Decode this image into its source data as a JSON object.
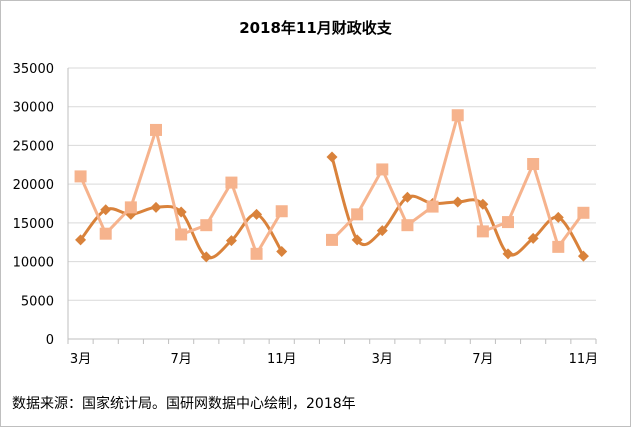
{
  "chart_data": {
    "type": "line",
    "title": "2018年11月财政收支",
    "x_tick_labels": [
      "3月",
      "7月",
      "11月",
      "3月",
      "7月",
      "11月"
    ],
    "x": [
      "2016-03",
      "2016-04",
      "2016-05",
      "2016-06",
      "2016-07",
      "2016-08",
      "2016-09",
      "2016-10",
      "2016-11",
      "2016-12",
      "2017-01",
      "2017-02",
      "2017-03",
      "2017-04",
      "2017-05",
      "2017-06",
      "2017-07",
      "2017-08",
      "2017-09",
      "2017-10",
      "2017-11"
    ],
    "ylim": [
      0,
      35000
    ],
    "yticks": [
      0,
      5000,
      10000,
      15000,
      20000,
      25000,
      30000,
      35000
    ],
    "grid": true,
    "legend": "none",
    "series": [
      {
        "color": "#d9823b",
        "marker": "diamond",
        "smooth": true,
        "values": [
          12800,
          16700,
          16100,
          17000,
          16400,
          10600,
          12700,
          16100,
          11300,
          null,
          23500,
          12800,
          14000,
          18300,
          17500,
          17700,
          17400,
          11000,
          13000,
          15700,
          10700
        ]
      },
      {
        "color": "#f6b38d",
        "marker": "square",
        "smooth": false,
        "values": [
          21000,
          13600,
          17000,
          27000,
          13500,
          14700,
          20200,
          11000,
          16500,
          null,
          12800,
          16100,
          21900,
          14700,
          17100,
          28900,
          13900,
          15100,
          22600,
          11900,
          16300
        ]
      }
    ]
  },
  "source_note": "数据来源：国家统计局。国研网数据中心绘制，2018年"
}
